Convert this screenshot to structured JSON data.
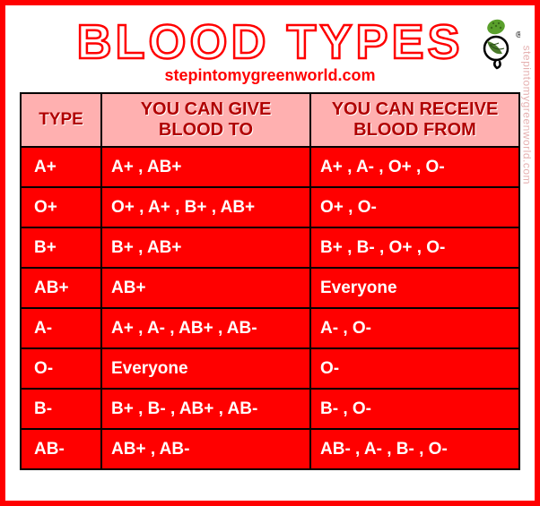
{
  "title": "BLOOD TYPES",
  "subtitle": "stepintomygreenworld.com",
  "watermark": "stepintomygreenworld.com",
  "colors": {
    "title": "#ff0000",
    "table_bg": "#ff0000",
    "header_bg": "#ffb0b0",
    "header_text": "#b00000",
    "border": "#000000",
    "cell_text": "#ffffff"
  },
  "table": {
    "columns": [
      "TYPE",
      "YOU CAN GIVE BLOOD TO",
      "YOU CAN RECEIVE BLOOD FROM"
    ],
    "rows": [
      [
        "A+",
        "A+ , AB+",
        "A+ , A- , O+ , O-"
      ],
      [
        "O+",
        "O+ , A+ , B+ , AB+",
        "O+ , O-"
      ],
      [
        "B+",
        "B+ , AB+",
        "B+ , B- , O+ , O-"
      ],
      [
        "AB+",
        "AB+",
        "Everyone"
      ],
      [
        "A-",
        "A+ , A- , AB+ , AB-",
        "A- , O-"
      ],
      [
        "O-",
        "Everyone",
        "O-"
      ],
      [
        "B-",
        "B+ , B- , AB+ , AB-",
        "B- , O-"
      ],
      [
        "AB-",
        "AB+ , AB-",
        "AB- , A- , B- , O-"
      ]
    ]
  }
}
